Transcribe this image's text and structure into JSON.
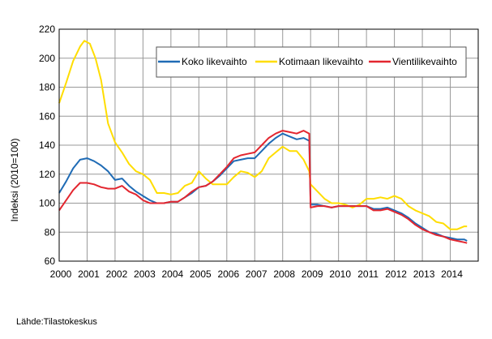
{
  "chart_data": {
    "type": "line",
    "title": "",
    "xlabel": "",
    "ylabel": "Indeksi (2010=100)",
    "ylim": [
      60,
      220
    ],
    "xlim": [
      2000,
      2015
    ],
    "yticks": [
      60,
      80,
      100,
      120,
      140,
      160,
      180,
      200,
      220
    ],
    "xticks": [
      "2000",
      "2001",
      "2002",
      "2003",
      "2004",
      "2005",
      "2006",
      "2007",
      "2008",
      "2009",
      "2010",
      "2011",
      "2012",
      "2013",
      "2014"
    ],
    "grid": true,
    "legend_position": "top-right",
    "series": [
      {
        "name": "Koko likevaihto",
        "color": "#1f6bb5",
        "x": [
          2000,
          2000.25,
          2000.5,
          2000.75,
          2001,
          2001.25,
          2001.5,
          2001.75,
          2002,
          2002.25,
          2002.5,
          2002.75,
          2003,
          2003.25,
          2003.5,
          2003.75,
          2004,
          2004.25,
          2004.5,
          2004.75,
          2005,
          2005.25,
          2005.5,
          2005.75,
          2006,
          2006.25,
          2006.5,
          2006.75,
          2007,
          2007.25,
          2007.5,
          2007.75,
          2008,
          2008.25,
          2008.5,
          2008.75,
          2008.95,
          2009,
          2009.25,
          2009.5,
          2009.75,
          2010,
          2010.25,
          2010.5,
          2010.75,
          2011,
          2011.25,
          2011.5,
          2011.75,
          2012,
          2012.25,
          2012.5,
          2012.75,
          2013,
          2013.25,
          2013.5,
          2013.75,
          2014,
          2014.25,
          2014.5,
          2014.6
        ],
        "y": [
          107,
          115,
          124,
          130,
          131,
          129,
          126,
          122,
          116,
          117,
          112,
          108,
          105,
          102,
          100,
          100,
          101,
          101,
          104,
          107,
          111,
          112,
          115,
          119,
          124,
          129,
          130,
          131,
          131,
          136,
          141,
          145,
          148,
          146,
          144,
          145,
          143,
          99,
          99,
          98,
          97,
          98,
          98,
          98,
          98,
          98,
          96,
          96,
          97,
          95,
          93,
          90,
          86,
          83,
          80,
          79,
          77,
          76,
          75,
          75,
          74
        ]
      },
      {
        "name": "Kotimaan likevaihto",
        "color": "#ffdd00",
        "x": [
          2000,
          2000.25,
          2000.5,
          2000.75,
          2000.9,
          2001.1,
          2001.3,
          2001.5,
          2001.75,
          2002,
          2002.25,
          2002.5,
          2002.75,
          2003,
          2003.25,
          2003.5,
          2003.75,
          2004,
          2004.25,
          2004.5,
          2004.75,
          2005,
          2005.25,
          2005.5,
          2005.75,
          2006,
          2006.25,
          2006.5,
          2006.75,
          2007,
          2007.25,
          2007.5,
          2007.75,
          2008,
          2008.25,
          2008.5,
          2008.75,
          2008.95,
          2009,
          2009.25,
          2009.5,
          2009.75,
          2010,
          2010.25,
          2010.5,
          2010.75,
          2011,
          2011.25,
          2011.5,
          2011.75,
          2012,
          2012.25,
          2012.5,
          2012.75,
          2013,
          2013.25,
          2013.5,
          2013.75,
          2014,
          2014.25,
          2014.5,
          2014.6
        ],
        "y": [
          169,
          183,
          198,
          208,
          212,
          210,
          200,
          185,
          155,
          142,
          135,
          127,
          122,
          120,
          116,
          107,
          107,
          106,
          107,
          112,
          114,
          122,
          117,
          113,
          113,
          113,
          118,
          122,
          121,
          118,
          122,
          131,
          135,
          139,
          136,
          136,
          130,
          122,
          113,
          108,
          103,
          100,
          100,
          99,
          97,
          99,
          103,
          103,
          104,
          103,
          105,
          103,
          98,
          95,
          93,
          91,
          87,
          86,
          82,
          82,
          84,
          84
        ]
      },
      {
        "name": "Vientilikevaihto",
        "color": "#e3262f",
        "x": [
          2000,
          2000.25,
          2000.5,
          2000.75,
          2001,
          2001.25,
          2001.5,
          2001.75,
          2002,
          2002.25,
          2002.5,
          2002.75,
          2003,
          2003.25,
          2003.5,
          2003.75,
          2004,
          2004.25,
          2004.5,
          2004.75,
          2005,
          2005.25,
          2005.5,
          2005.75,
          2006,
          2006.25,
          2006.5,
          2006.75,
          2007,
          2007.25,
          2007.5,
          2007.75,
          2008,
          2008.25,
          2008.5,
          2008.75,
          2008.95,
          2009,
          2009.25,
          2009.5,
          2009.75,
          2010,
          2010.25,
          2010.5,
          2010.75,
          2011,
          2011.25,
          2011.5,
          2011.75,
          2012,
          2012.25,
          2012.5,
          2012.75,
          2013,
          2013.25,
          2013.5,
          2013.75,
          2014,
          2014.25,
          2014.5,
          2014.6
        ],
        "y": [
          95,
          102,
          109,
          114,
          114,
          113,
          111,
          110,
          110,
          112,
          108,
          106,
          102,
          100,
          100,
          100,
          101,
          101,
          104,
          108,
          111,
          112,
          115,
          120,
          125,
          131,
          133,
          134,
          135,
          140,
          145,
          148,
          150,
          149,
          148,
          150,
          148,
          97,
          98,
          98,
          97,
          98,
          98,
          98,
          98,
          98,
          95,
          95,
          96,
          94,
          92,
          89,
          85,
          82,
          80,
          78,
          77,
          75,
          74,
          73,
          72.5
        ]
      }
    ]
  },
  "source": "Lähde:Tilastokeskus"
}
